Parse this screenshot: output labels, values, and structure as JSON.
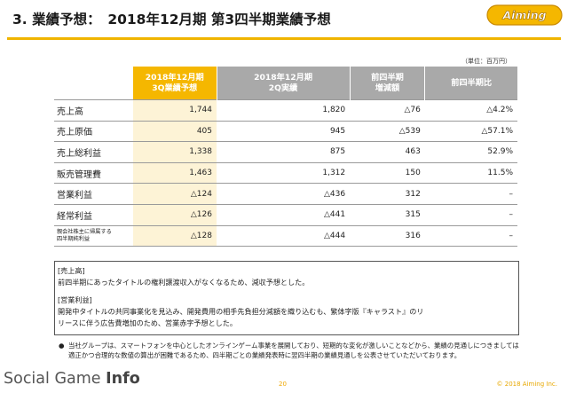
{
  "header": {
    "title": "3. 業績予想：　2018年12月期 第3四半期業績予想",
    "logo_text": "Aiming",
    "accent_color": "#f0b400"
  },
  "unit_note": "（単位：百万円）",
  "table": {
    "columns": [
      "",
      "2018年12月期\n3Q業績予想",
      "2018年12月期\n2Q実績",
      "前四半期\n増減額",
      "前四半期比"
    ],
    "rows": [
      {
        "label": "売上高",
        "values": [
          "1,744",
          "1,820",
          "△76",
          "△4.2%"
        ]
      },
      {
        "label": "売上原価",
        "values": [
          "405",
          "945",
          "△539",
          "△57.1%"
        ]
      },
      {
        "label": "売上総利益",
        "values": [
          "1,338",
          "875",
          "463",
          "52.9%"
        ]
      },
      {
        "label": "販売管理費",
        "values": [
          "1,463",
          "1,312",
          "150",
          "11.5%"
        ]
      },
      {
        "label": "営業利益",
        "values": [
          "△124",
          "△436",
          "312",
          "–"
        ]
      },
      {
        "label": "経常利益",
        "values": [
          "△126",
          "△441",
          "315",
          "–"
        ]
      },
      {
        "label": "親会社株主に帰属する\n四半期純利益",
        "values": [
          "△128",
          "△444",
          "316",
          "–"
        ]
      }
    ]
  },
  "notes": {
    "sales_heading": "[売上高]",
    "sales_text": "前四半期にあったタイトルの権利譲渡収入がなくなるため、減収予想とした。",
    "op_heading": "[営業利益]",
    "op_text_1": "開発中タイトルの共同事業化を見込み、開発費用の相手先負担分減額を織り込むも、繁体字版『キャラスト』のリ",
    "op_text_2": "リースに伴う広告費増加のため、営業赤字予想とした。"
  },
  "bullet": {
    "symbol": "●",
    "text": "当社グループは、スマートフォンを中心としたオンラインゲーム事業を展開しており、短期的な変化が激しいことなどから、業績の見通しにつきましては適正かつ合理的な数値の算出が困難であるため、四半期ごとの業績発表時に翌四半期の業績見通しを公表させていただいております。"
  },
  "footer": {
    "brand_light": "Social Game ",
    "brand_bold": "Info",
    "page_number": "20",
    "copyright": "© 2018 Aiming Inc."
  }
}
